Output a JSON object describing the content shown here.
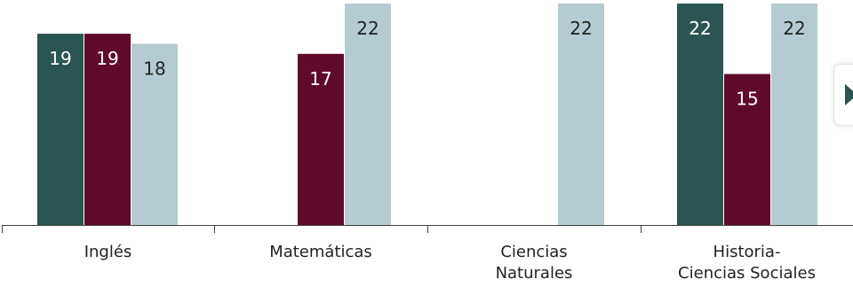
{
  "chart_data": {
    "type": "bar",
    "categories": [
      [
        "Inglés"
      ],
      [
        "Matemáticas"
      ],
      [
        "Ciencias",
        "Naturales"
      ],
      [
        "Historia-",
        "Ciencias Sociales"
      ]
    ],
    "series": [
      {
        "values": [
          19,
          null,
          null,
          22
        ],
        "color": "#2b5552",
        "label_color": "#ffffff"
      },
      {
        "values": [
          19,
          17,
          null,
          15
        ],
        "color": "#5f0a2b",
        "label_color": "#ffffff"
      },
      {
        "values": [
          18,
          22,
          22,
          22
        ],
        "color": "#b4ccd1",
        "label_color": "#222222"
      }
    ],
    "ylim": [
      0,
      22
    ],
    "grid": false,
    "legend": "none"
  },
  "controls": {
    "next_icon": "play-triangle-icon"
  }
}
